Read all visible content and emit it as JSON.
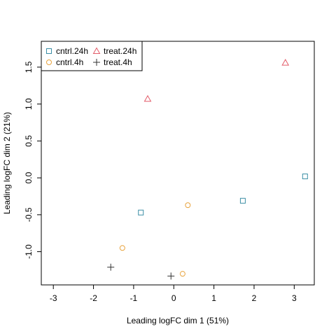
{
  "chart_data": {
    "type": "scatter",
    "title": "",
    "xlabel": "Leading logFC dim 1 (51%)",
    "ylabel": "Leading logFC dim 2 (21%)",
    "xlim": [
      -3.3,
      3.5
    ],
    "ylim": [
      -1.45,
      1.85
    ],
    "x_ticks": [
      -3,
      -2,
      -1,
      0,
      1,
      2,
      3
    ],
    "y_ticks": [
      -1.0,
      -0.5,
      0.0,
      0.5,
      1.0,
      1.5
    ],
    "x_tick_labels": [
      "-3",
      "-2",
      "-1",
      "0",
      "1",
      "2",
      "3"
    ],
    "y_tick_labels": [
      "-1.0",
      "-0.5",
      "0.0",
      "0.5",
      "1.0",
      "1.5"
    ],
    "grid": false,
    "legend_position": "top-left",
    "series": [
      {
        "name": "cntrl.24h",
        "marker": "square",
        "color": "#3B8EA5",
        "points": [
          [
            -0.82,
            -0.47
          ],
          [
            1.72,
            -0.31
          ],
          [
            3.27,
            0.02
          ]
        ]
      },
      {
        "name": "cntrl.4h",
        "marker": "circle",
        "color": "#E8A33D",
        "points": [
          [
            -1.28,
            -0.95
          ],
          [
            0.35,
            -0.37
          ],
          [
            0.22,
            -1.3
          ]
        ]
      },
      {
        "name": "treat.24h",
        "marker": "triangle",
        "color": "#E35D6A",
        "points": [
          [
            -0.65,
            1.07
          ],
          [
            2.78,
            1.56
          ]
        ]
      },
      {
        "name": "treat.4h",
        "marker": "plus",
        "color": "#333333",
        "points": [
          [
            -1.57,
            -1.21
          ],
          [
            -0.07,
            -1.33
          ]
        ]
      }
    ]
  }
}
